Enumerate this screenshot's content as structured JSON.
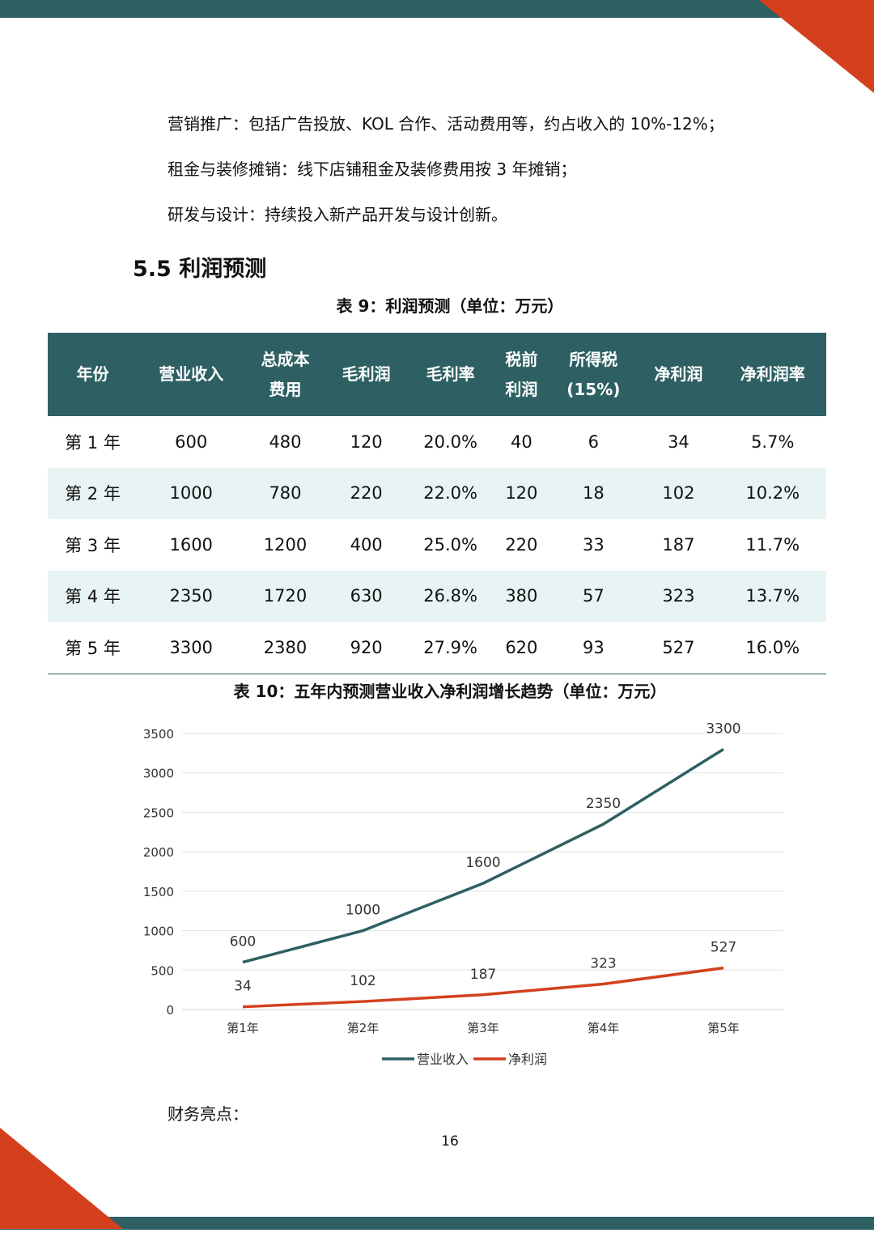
{
  "paragraphs": [
    "营销推广：包括广告投放、KOL 合作、活动费用等，约占收入的 10%-12%；",
    "租金与装修摊销：线下店铺租金及装修费用按 3 年摊销；",
    "研发与设计：持续投入新产品开发与设计创新。"
  ],
  "section_title": "5.5  利润预测",
  "table_caption": "表 9：利润预测（单位：万元）",
  "table": {
    "headers": [
      "年份",
      "营业收入",
      "总成本\n费用",
      "毛利润",
      "毛利率",
      "税前\n利润",
      "所得税\n(15%)",
      "净利润",
      "净利润率"
    ],
    "rows": [
      [
        "第 1 年",
        "600",
        "480",
        "120",
        "20.0%",
        "40",
        "6",
        "34",
        "5.7%"
      ],
      [
        "第 2 年",
        "1000",
        "780",
        "220",
        "22.0%",
        "120",
        "18",
        "102",
        "10.2%"
      ],
      [
        "第 3 年",
        "1600",
        "1200",
        "400",
        "25.0%",
        "220",
        "33",
        "187",
        "11.7%"
      ],
      [
        "第 4 年",
        "2350",
        "1720",
        "630",
        "26.8%",
        "380",
        "57",
        "323",
        "13.7%"
      ],
      [
        "第 5 年",
        "3300",
        "2380",
        "920",
        "27.9%",
        "620",
        "93",
        "527",
        "16.0%"
      ]
    ]
  },
  "chart_data": {
    "type": "line",
    "title": "表 10：五年内预测营业收入净利润增长趋势（单位：万元）",
    "categories": [
      "第1年",
      "第2年",
      "第3年",
      "第4年",
      "第5年"
    ],
    "series": [
      {
        "name": "营业收入",
        "values": [
          600,
          1000,
          1600,
          2350,
          3300
        ],
        "color": "#2E6063"
      },
      {
        "name": "净利润",
        "values": [
          34,
          102,
          187,
          323,
          527
        ],
        "color": "#D4401E"
      }
    ],
    "ylim": [
      0,
      3500
    ],
    "yticks": [
      0,
      500,
      1000,
      1500,
      2000,
      2500,
      3000,
      3500
    ],
    "grid": true,
    "legend": "bottom"
  },
  "footer_heading": "财务亮点：",
  "page_number": "16",
  "colors": {
    "teal": "#2E6063",
    "orange": "#D4401E",
    "row_alt": "#E8F4F3"
  }
}
